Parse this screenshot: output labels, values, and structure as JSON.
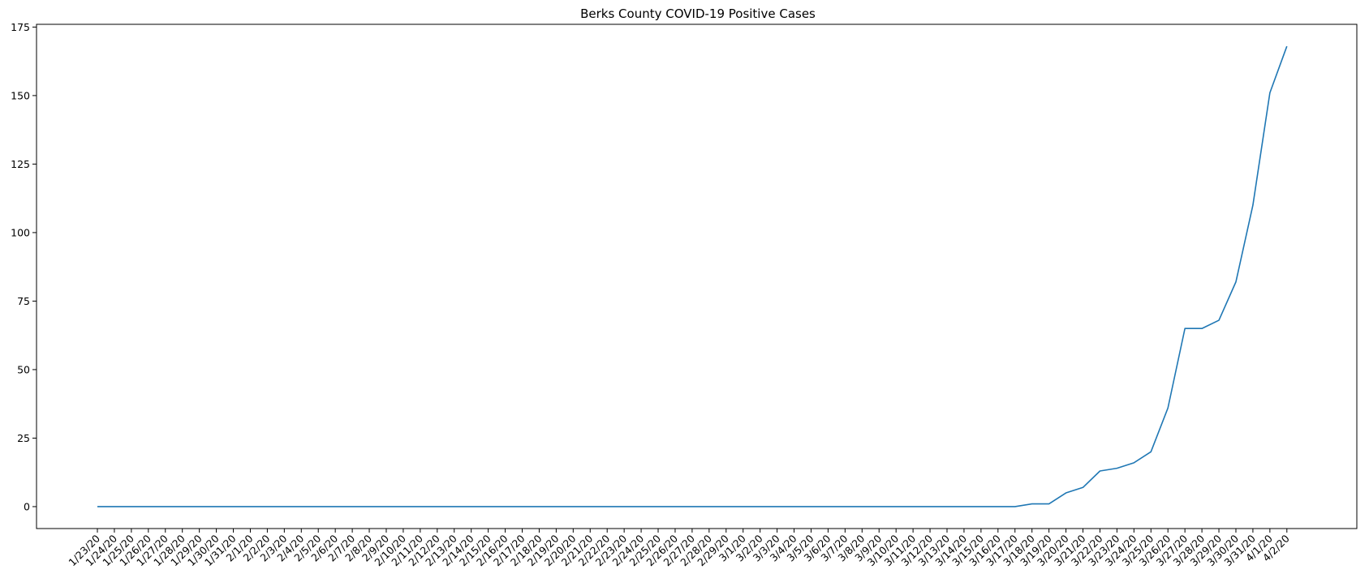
{
  "chart_data": {
    "type": "line",
    "title": "Berks County COVID-19 Positive Cases",
    "xlabel": "",
    "ylabel": "",
    "ylim": [
      -8,
      176
    ],
    "yticks": [
      0,
      25,
      50,
      75,
      100,
      125,
      150,
      175
    ],
    "grid": false,
    "line_color": "#1f77b4",
    "x": [
      "1/23/20",
      "1/24/20",
      "1/25/20",
      "1/26/20",
      "1/27/20",
      "1/28/20",
      "1/29/20",
      "1/30/20",
      "1/31/20",
      "2/1/20",
      "2/2/20",
      "2/3/20",
      "2/4/20",
      "2/5/20",
      "2/6/20",
      "2/7/20",
      "2/8/20",
      "2/9/20",
      "2/10/20",
      "2/11/20",
      "2/12/20",
      "2/13/20",
      "2/14/20",
      "2/15/20",
      "2/16/20",
      "2/17/20",
      "2/18/20",
      "2/19/20",
      "2/20/20",
      "2/21/20",
      "2/22/20",
      "2/23/20",
      "2/24/20",
      "2/25/20",
      "2/26/20",
      "2/27/20",
      "2/28/20",
      "2/29/20",
      "3/1/20",
      "3/2/20",
      "3/3/20",
      "3/4/20",
      "3/5/20",
      "3/6/20",
      "3/7/20",
      "3/8/20",
      "3/9/20",
      "3/10/20",
      "3/11/20",
      "3/12/20",
      "3/13/20",
      "3/14/20",
      "3/15/20",
      "3/16/20",
      "3/17/20",
      "3/18/20",
      "3/19/20",
      "3/20/20",
      "3/21/20",
      "3/22/20",
      "3/23/20",
      "3/24/20",
      "3/25/20",
      "3/26/20",
      "3/27/20",
      "3/28/20",
      "3/29/20",
      "3/30/20",
      "3/31/20",
      "4/1/20",
      "4/2/20"
    ],
    "series": [
      {
        "values": [
          0,
          0,
          0,
          0,
          0,
          0,
          0,
          0,
          0,
          0,
          0,
          0,
          0,
          0,
          0,
          0,
          0,
          0,
          0,
          0,
          0,
          0,
          0,
          0,
          0,
          0,
          0,
          0,
          0,
          0,
          0,
          0,
          0,
          0,
          0,
          0,
          0,
          0,
          0,
          0,
          0,
          0,
          0,
          0,
          0,
          0,
          0,
          0,
          0,
          0,
          0,
          0,
          0,
          0,
          0,
          1,
          1,
          5,
          7,
          13,
          14,
          16,
          20,
          36,
          65,
          65,
          68,
          82,
          110,
          151,
          168
        ]
      }
    ]
  }
}
